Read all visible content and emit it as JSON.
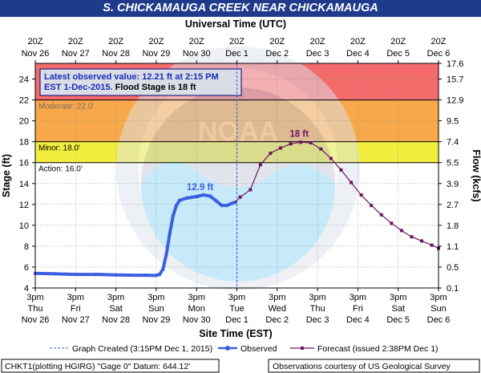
{
  "chart_data": {
    "type": "line",
    "title": "S. CHICKAMAUGA CREEK NEAR CHICKAMAUGA",
    "top_axis_title": "Universal Time (UTC)",
    "xlabel": "Site Time (EST)",
    "ylabel": "Stage (ft)",
    "y2label": "Flow (kcfs)",
    "ylim": [
      4,
      25.5
    ],
    "y_ticks": [
      4,
      6,
      8,
      10,
      12,
      14,
      16,
      18,
      20,
      22,
      24
    ],
    "flow_ticks": [
      {
        "stage": 4,
        "label": "0.1"
      },
      {
        "stage": 6,
        "label": "0.5"
      },
      {
        "stage": 8,
        "label": "1.1"
      },
      {
        "stage": 10,
        "label": "1.8"
      },
      {
        "stage": 12,
        "label": "2.7"
      },
      {
        "stage": 14,
        "label": "3.9"
      },
      {
        "stage": 16,
        "label": "5.5"
      },
      {
        "stage": 18,
        "label": "7.4"
      },
      {
        "stage": 20,
        "label": "9.5"
      },
      {
        "stage": 22,
        "label": "12.9"
      },
      {
        "stage": 24,
        "label": "15.7"
      },
      {
        "stage": 25.5,
        "label": "17.6"
      }
    ],
    "x_domain_hours": [
      0,
      240
    ],
    "bottom_ticks": [
      {
        "h": 0,
        "l1": "3pm",
        "l2": "Thu",
        "l3": "Nov 26"
      },
      {
        "h": 24,
        "l1": "3pm",
        "l2": "Fri",
        "l3": "Nov 27"
      },
      {
        "h": 48,
        "l1": "3pm",
        "l2": "Sat",
        "l3": "Nov 28"
      },
      {
        "h": 72,
        "l1": "3pm",
        "l2": "Sun",
        "l3": "Nov 29"
      },
      {
        "h": 96,
        "l1": "3pm",
        "l2": "Mon",
        "l3": "Nov 30"
      },
      {
        "h": 120,
        "l1": "3pm",
        "l2": "Tue",
        "l3": "Dec 1"
      },
      {
        "h": 144,
        "l1": "3pm",
        "l2": "Wed",
        "l3": "Dec 2"
      },
      {
        "h": 168,
        "l1": "3pm",
        "l2": "Thu",
        "l3": "Dec 3"
      },
      {
        "h": 192,
        "l1": "3pm",
        "l2": "Fri",
        "l3": "Dec 4"
      },
      {
        "h": 216,
        "l1": "3pm",
        "l2": "Sat",
        "l3": "Dec 5"
      },
      {
        "h": 240,
        "l1": "3pm",
        "l2": "Sun",
        "l3": "Dec 6"
      }
    ],
    "top_ticks": [
      {
        "h": 0,
        "l1": "20Z",
        "l2": "Nov 26"
      },
      {
        "h": 24,
        "l1": "20Z",
        "l2": "Nov 27"
      },
      {
        "h": 48,
        "l1": "20Z",
        "l2": "Nov 28"
      },
      {
        "h": 72,
        "l1": "20Z",
        "l2": "Nov 29"
      },
      {
        "h": 96,
        "l1": "20Z",
        "l2": "Nov 30"
      },
      {
        "h": 120,
        "l1": "20Z",
        "l2": "Dec 1"
      },
      {
        "h": 144,
        "l1": "20Z",
        "l2": "Dec 2"
      },
      {
        "h": 168,
        "l1": "20Z",
        "l2": "Dec 3"
      },
      {
        "h": 192,
        "l1": "20Z",
        "l2": "Dec 4"
      },
      {
        "h": 216,
        "l1": "20Z",
        "l2": "Dec 5"
      },
      {
        "h": 240,
        "l1": "20Z",
        "l2": "Dec 6"
      }
    ],
    "bands": [
      {
        "name": "Moderate",
        "from": 22,
        "to": 25.5,
        "color": "#f36b6b"
      },
      {
        "name": "Minor",
        "from": 18,
        "to": 22,
        "color": "#f7a84a"
      },
      {
        "name": "Action",
        "from": 16,
        "to": 18,
        "color": "#f2ee3e"
      }
    ],
    "threshold_lines": [
      {
        "stage": 22,
        "label": "Moderate: 22.0'"
      },
      {
        "stage": 18,
        "label": "Minor: 18.0'"
      },
      {
        "stage": 16,
        "label": "Action: 16.0'"
      }
    ],
    "created_hour": 120,
    "observed": {
      "name": "Observed",
      "color": "#3b5fe0",
      "peak_label": "12.9 ft",
      "points": [
        [
          0,
          5.4
        ],
        [
          12,
          5.35
        ],
        [
          24,
          5.3
        ],
        [
          36,
          5.3
        ],
        [
          48,
          5.25
        ],
        [
          60,
          5.22
        ],
        [
          66,
          5.22
        ],
        [
          72,
          5.2
        ],
        [
          74,
          5.3
        ],
        [
          76,
          5.8
        ],
        [
          78,
          7.2
        ],
        [
          80,
          9.2
        ],
        [
          82,
          10.9
        ],
        [
          84,
          11.9
        ],
        [
          86,
          12.4
        ],
        [
          90,
          12.6
        ],
        [
          96,
          12.75
        ],
        [
          100,
          12.9
        ],
        [
          104,
          12.8
        ],
        [
          108,
          12.3
        ],
        [
          111,
          11.9
        ],
        [
          114,
          11.9
        ],
        [
          117,
          12.1
        ],
        [
          119,
          12.21
        ]
      ]
    },
    "forecast": {
      "name": "Forecast (issued 2:38PM Dec 1)",
      "color": "#6b1460",
      "peak_label": "18 ft",
      "points": [
        [
          122,
          12.7
        ],
        [
          128,
          13.4
        ],
        [
          134,
          15.8
        ],
        [
          140,
          16.9
        ],
        [
          146,
          17.4
        ],
        [
          152,
          17.8
        ],
        [
          158,
          17.95
        ],
        [
          164,
          17.9
        ],
        [
          170,
          17.3
        ],
        [
          176,
          16.4
        ],
        [
          182,
          15.3
        ],
        [
          188,
          14.1
        ],
        [
          194,
          12.9
        ],
        [
          200,
          11.9
        ],
        [
          206,
          11.0
        ],
        [
          212,
          10.2
        ],
        [
          218,
          9.5
        ],
        [
          224,
          8.9
        ],
        [
          230,
          8.5
        ],
        [
          236,
          8.1
        ],
        [
          240,
          7.8
        ]
      ]
    }
  },
  "info_box": {
    "line1": "Latest observed value: 12.21 ft at 2:15 PM",
    "line2a": "EST 1-Dec-2015.",
    "line2b": " Flood Stage is 18 ft"
  },
  "legend": {
    "graph_created": "Graph Created (3:15PM Dec 1, 2015)",
    "observed": "Observed",
    "forecast": "Forecast (issued 2:38PM Dec 1)"
  },
  "footer": {
    "left": "CHKT1(plotting HGIRG) \"Gage 0\" Datum: 644.12'",
    "right": "Observations courtesy of US Geological Survey"
  },
  "colors": {
    "title_bg": "#1f3a8a",
    "observed": "#3b5fe0",
    "forecast": "#6b1460",
    "created_line": "#3b5fe0"
  }
}
